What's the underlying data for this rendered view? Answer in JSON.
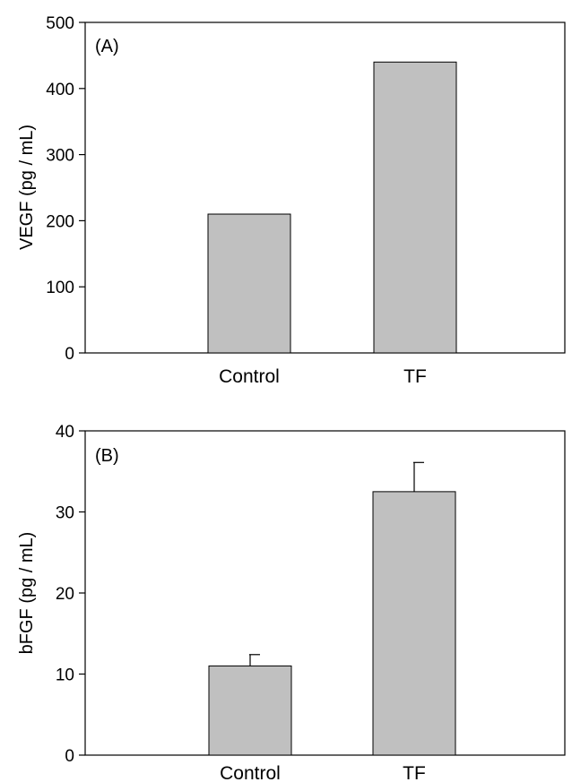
{
  "chart_data": [
    {
      "type": "bar",
      "panel_label": "(A)",
      "categories": [
        "Control",
        "TF"
      ],
      "values": [
        210,
        440
      ],
      "errors": [
        null,
        null
      ],
      "ylabel": "VEGF (pg / mL)",
      "ylim": [
        0,
        500
      ],
      "yticks": [
        "0",
        "100",
        "200",
        "300",
        "400",
        "500"
      ],
      "bar_color": "#c0c0c0",
      "grid": false
    },
    {
      "type": "bar",
      "panel_label": "(B)",
      "categories": [
        "Control",
        "TF"
      ],
      "values": [
        11,
        32.5
      ],
      "errors": [
        1.4,
        3.6
      ],
      "ylabel": "bFGF (pg / mL)",
      "ylim": [
        0,
        40
      ],
      "yticks": [
        "0",
        "10",
        "20",
        "30",
        "40"
      ],
      "bar_color": "#c0c0c0",
      "grid": false
    }
  ]
}
